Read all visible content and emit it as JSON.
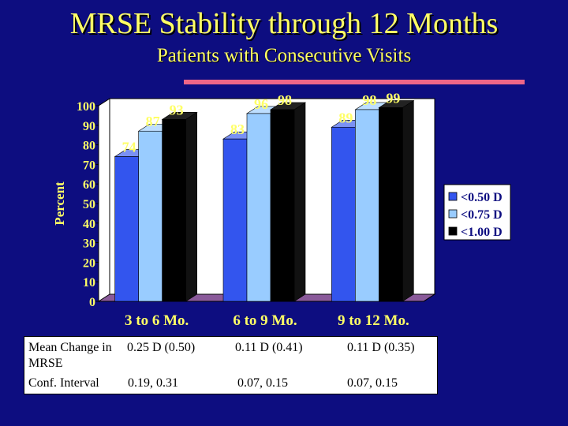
{
  "slide": {
    "title": "MRSE Stability through 12 Months",
    "subtitle": "Patients with Consecutive Visits",
    "accent_rule_color": "#ee6688"
  },
  "chart_data": {
    "type": "bar",
    "style": "3d-clustered",
    "title": "",
    "xlabel": "",
    "ylabel": "Percent",
    "ylim": [
      0,
      100
    ],
    "yticks": [
      0,
      10,
      20,
      30,
      40,
      50,
      60,
      70,
      80,
      90,
      100
    ],
    "grid": false,
    "legend_position": "right",
    "categories": [
      "3 to 6 Mo.",
      "6 to 9 Mo.",
      "9 to 12 Mo."
    ],
    "series": [
      {
        "name": "<0.50 D",
        "values": [
          74,
          83,
          89
        ],
        "color": "#3355ee"
      },
      {
        "name": "<0.75 D",
        "values": [
          87,
          96,
          98
        ],
        "color": "#99ccff"
      },
      {
        "name": "<1.00 D",
        "values": [
          93,
          98,
          99
        ],
        "color": "#000000"
      }
    ],
    "plot_background": "#ffffff",
    "floor_color": "#8a5a9a",
    "label_color": "#ffff66"
  },
  "summary_table": {
    "row1_label": "Mean Change in MRSE",
    "row1_values": [
      "0.25 D (0.50)",
      "0.11 D (0.41)",
      "0.11 D (0.35)"
    ],
    "row2_label": "Conf. Interval",
    "row2_values": [
      "0.19, 0.31",
      "0.07, 0.15",
      "0.07, 0.15"
    ]
  }
}
